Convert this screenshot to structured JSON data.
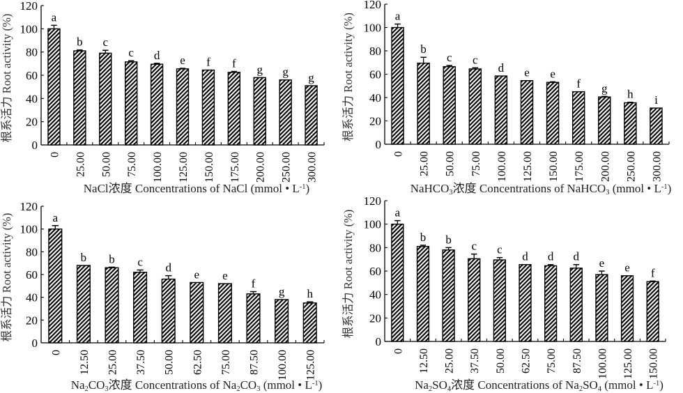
{
  "figure": {
    "panels": [
      {
        "id": "nacl"
      },
      {
        "id": "nahco3"
      },
      {
        "id": "na2co3"
      },
      {
        "id": "na2so4"
      }
    ]
  },
  "colors": {
    "bar_stroke": "#000000",
    "hatch": "#000000",
    "background": "#ffffff",
    "text": "#000000"
  },
  "chart_data": [
    {
      "type": "bar",
      "title": "",
      "xlabel": "NaCl浓度 Concentrations of NaCl (mmol • L⁻¹)",
      "xlabel_parts": [
        {
          "t": "NaCl浓度 Concentrations of NaCl (mmol • L"
        },
        {
          "t": "-1",
          "sup": true
        },
        {
          "t": ")"
        }
      ],
      "ylabel": "根系活力 Root activity (%)",
      "ylim": [
        0,
        120
      ],
      "yticks": [
        0,
        20,
        40,
        60,
        80,
        100,
        120
      ],
      "grid": false,
      "legend": "none",
      "categories": [
        "0",
        "25.00",
        "50.00",
        "75.00",
        "100.00",
        "125.00",
        "150.00",
        "175.00",
        "200.00",
        "250.00",
        "300.00"
      ],
      "values": [
        100,
        81,
        79,
        71.5,
        69.5,
        65.5,
        64.5,
        62.5,
        58,
        56,
        51
      ],
      "errors": [
        3,
        0.8,
        2.5,
        1,
        0.8,
        0.5,
        0,
        0.8,
        0,
        0,
        0
      ],
      "significance": [
        "a",
        "b",
        "c",
        "c",
        "d",
        "e",
        "f",
        "f",
        "g",
        "g",
        "g"
      ]
    },
    {
      "type": "bar",
      "title": "",
      "xlabel": "NaHCO₃浓度 Concentrations of NaHCO₃ (mmol • L⁻¹)",
      "xlabel_parts": [
        {
          "t": "NaHCO"
        },
        {
          "t": "3",
          "sub": true
        },
        {
          "t": "浓度 Concentrations of NaHCO"
        },
        {
          "t": "3",
          "sub": true
        },
        {
          "t": " (mmol • L"
        },
        {
          "t": "-1",
          "sup": true
        },
        {
          "t": ")"
        }
      ],
      "ylabel": "根系活力 Root activity (%)",
      "ylim": [
        0,
        120
      ],
      "yticks": [
        0,
        20,
        40,
        60,
        80,
        100,
        120
      ],
      "grid": false,
      "legend": "none",
      "categories": [
        "0",
        "25.00",
        "50.00",
        "75.00",
        "100.00",
        "125.00",
        "150.00",
        "175.00",
        "200.00",
        "250.00",
        "300.00"
      ],
      "values": [
        100,
        69.5,
        66.5,
        64.5,
        58.5,
        54.5,
        53,
        45,
        40.5,
        35.5,
        31
      ],
      "errors": [
        3,
        5,
        1,
        1,
        0,
        0,
        0.5,
        0,
        0.5,
        0.5,
        0
      ],
      "significance": [
        "a",
        "b",
        "c",
        "c",
        "d",
        "e",
        "e",
        "f",
        "g",
        "h",
        "i"
      ]
    },
    {
      "type": "bar",
      "title": "",
      "xlabel": "Na₂CO₃浓度 Concentrations of Na₂CO₃ (mmol • L⁻¹)",
      "xlabel_parts": [
        {
          "t": "Na"
        },
        {
          "t": "2",
          "sub": true
        },
        {
          "t": "CO"
        },
        {
          "t": "3",
          "sub": true
        },
        {
          "t": "浓度 Concentrations of Na"
        },
        {
          "t": "2",
          "sub": true
        },
        {
          "t": "CO"
        },
        {
          "t": "3",
          "sub": true
        },
        {
          "t": " (mmol • L"
        },
        {
          "t": "-1",
          "sup": true
        },
        {
          "t": ")"
        }
      ],
      "ylabel": "根系活力 Root activity (%)",
      "ylim": [
        0,
        120
      ],
      "yticks": [
        0,
        20,
        40,
        60,
        80,
        100,
        120
      ],
      "grid": false,
      "legend": "none",
      "categories": [
        "0",
        "12.50",
        "25.00",
        "37.50",
        "50.00",
        "62.50",
        "75.00",
        "87.50",
        "100.00",
        "125.00"
      ],
      "values": [
        100,
        68,
        66,
        62,
        56,
        53,
        52,
        43,
        38,
        35
      ],
      "errors": [
        3,
        0,
        0.5,
        2,
        3,
        0,
        0,
        2,
        0,
        1
      ],
      "significance": [
        "a",
        "b",
        "b",
        "c",
        "d",
        "e",
        "e",
        "f",
        "g",
        "h"
      ]
    },
    {
      "type": "bar",
      "title": "",
      "xlabel": "Na₂SO₄浓度 Concentrations of Na₂SO₄ (mmol • L⁻¹)",
      "xlabel_parts": [
        {
          "t": "Na"
        },
        {
          "t": "2",
          "sub": true
        },
        {
          "t": "SO"
        },
        {
          "t": "4",
          "sub": true
        },
        {
          "t": "浓度 Concentrations of Na"
        },
        {
          "t": "2",
          "sub": true
        },
        {
          "t": "SO"
        },
        {
          "t": "4",
          "sub": true
        },
        {
          "t": " (mmol • L"
        },
        {
          "t": "-1",
          "sup": true
        },
        {
          "t": ")"
        }
      ],
      "ylabel": "根系活力 Root activity (%)",
      "ylim": [
        0,
        120
      ],
      "yticks": [
        0,
        20,
        40,
        60,
        80,
        100,
        120
      ],
      "grid": false,
      "legend": "none",
      "categories": [
        "0",
        "12.50",
        "25.00",
        "37.50",
        "50.00",
        "62.50",
        "75.00",
        "87.50",
        "100.00",
        "125.00",
        "150.00"
      ],
      "values": [
        100,
        81,
        78,
        70.5,
        69.5,
        65.5,
        64.5,
        62.5,
        57,
        56,
        51
      ],
      "errors": [
        3,
        1,
        2,
        4,
        2,
        0,
        1,
        3,
        3,
        0,
        0.5
      ],
      "significance": [
        "a",
        "b",
        "b",
        "c",
        "c",
        "d",
        "d",
        "d",
        "e",
        "e",
        "f"
      ]
    }
  ]
}
